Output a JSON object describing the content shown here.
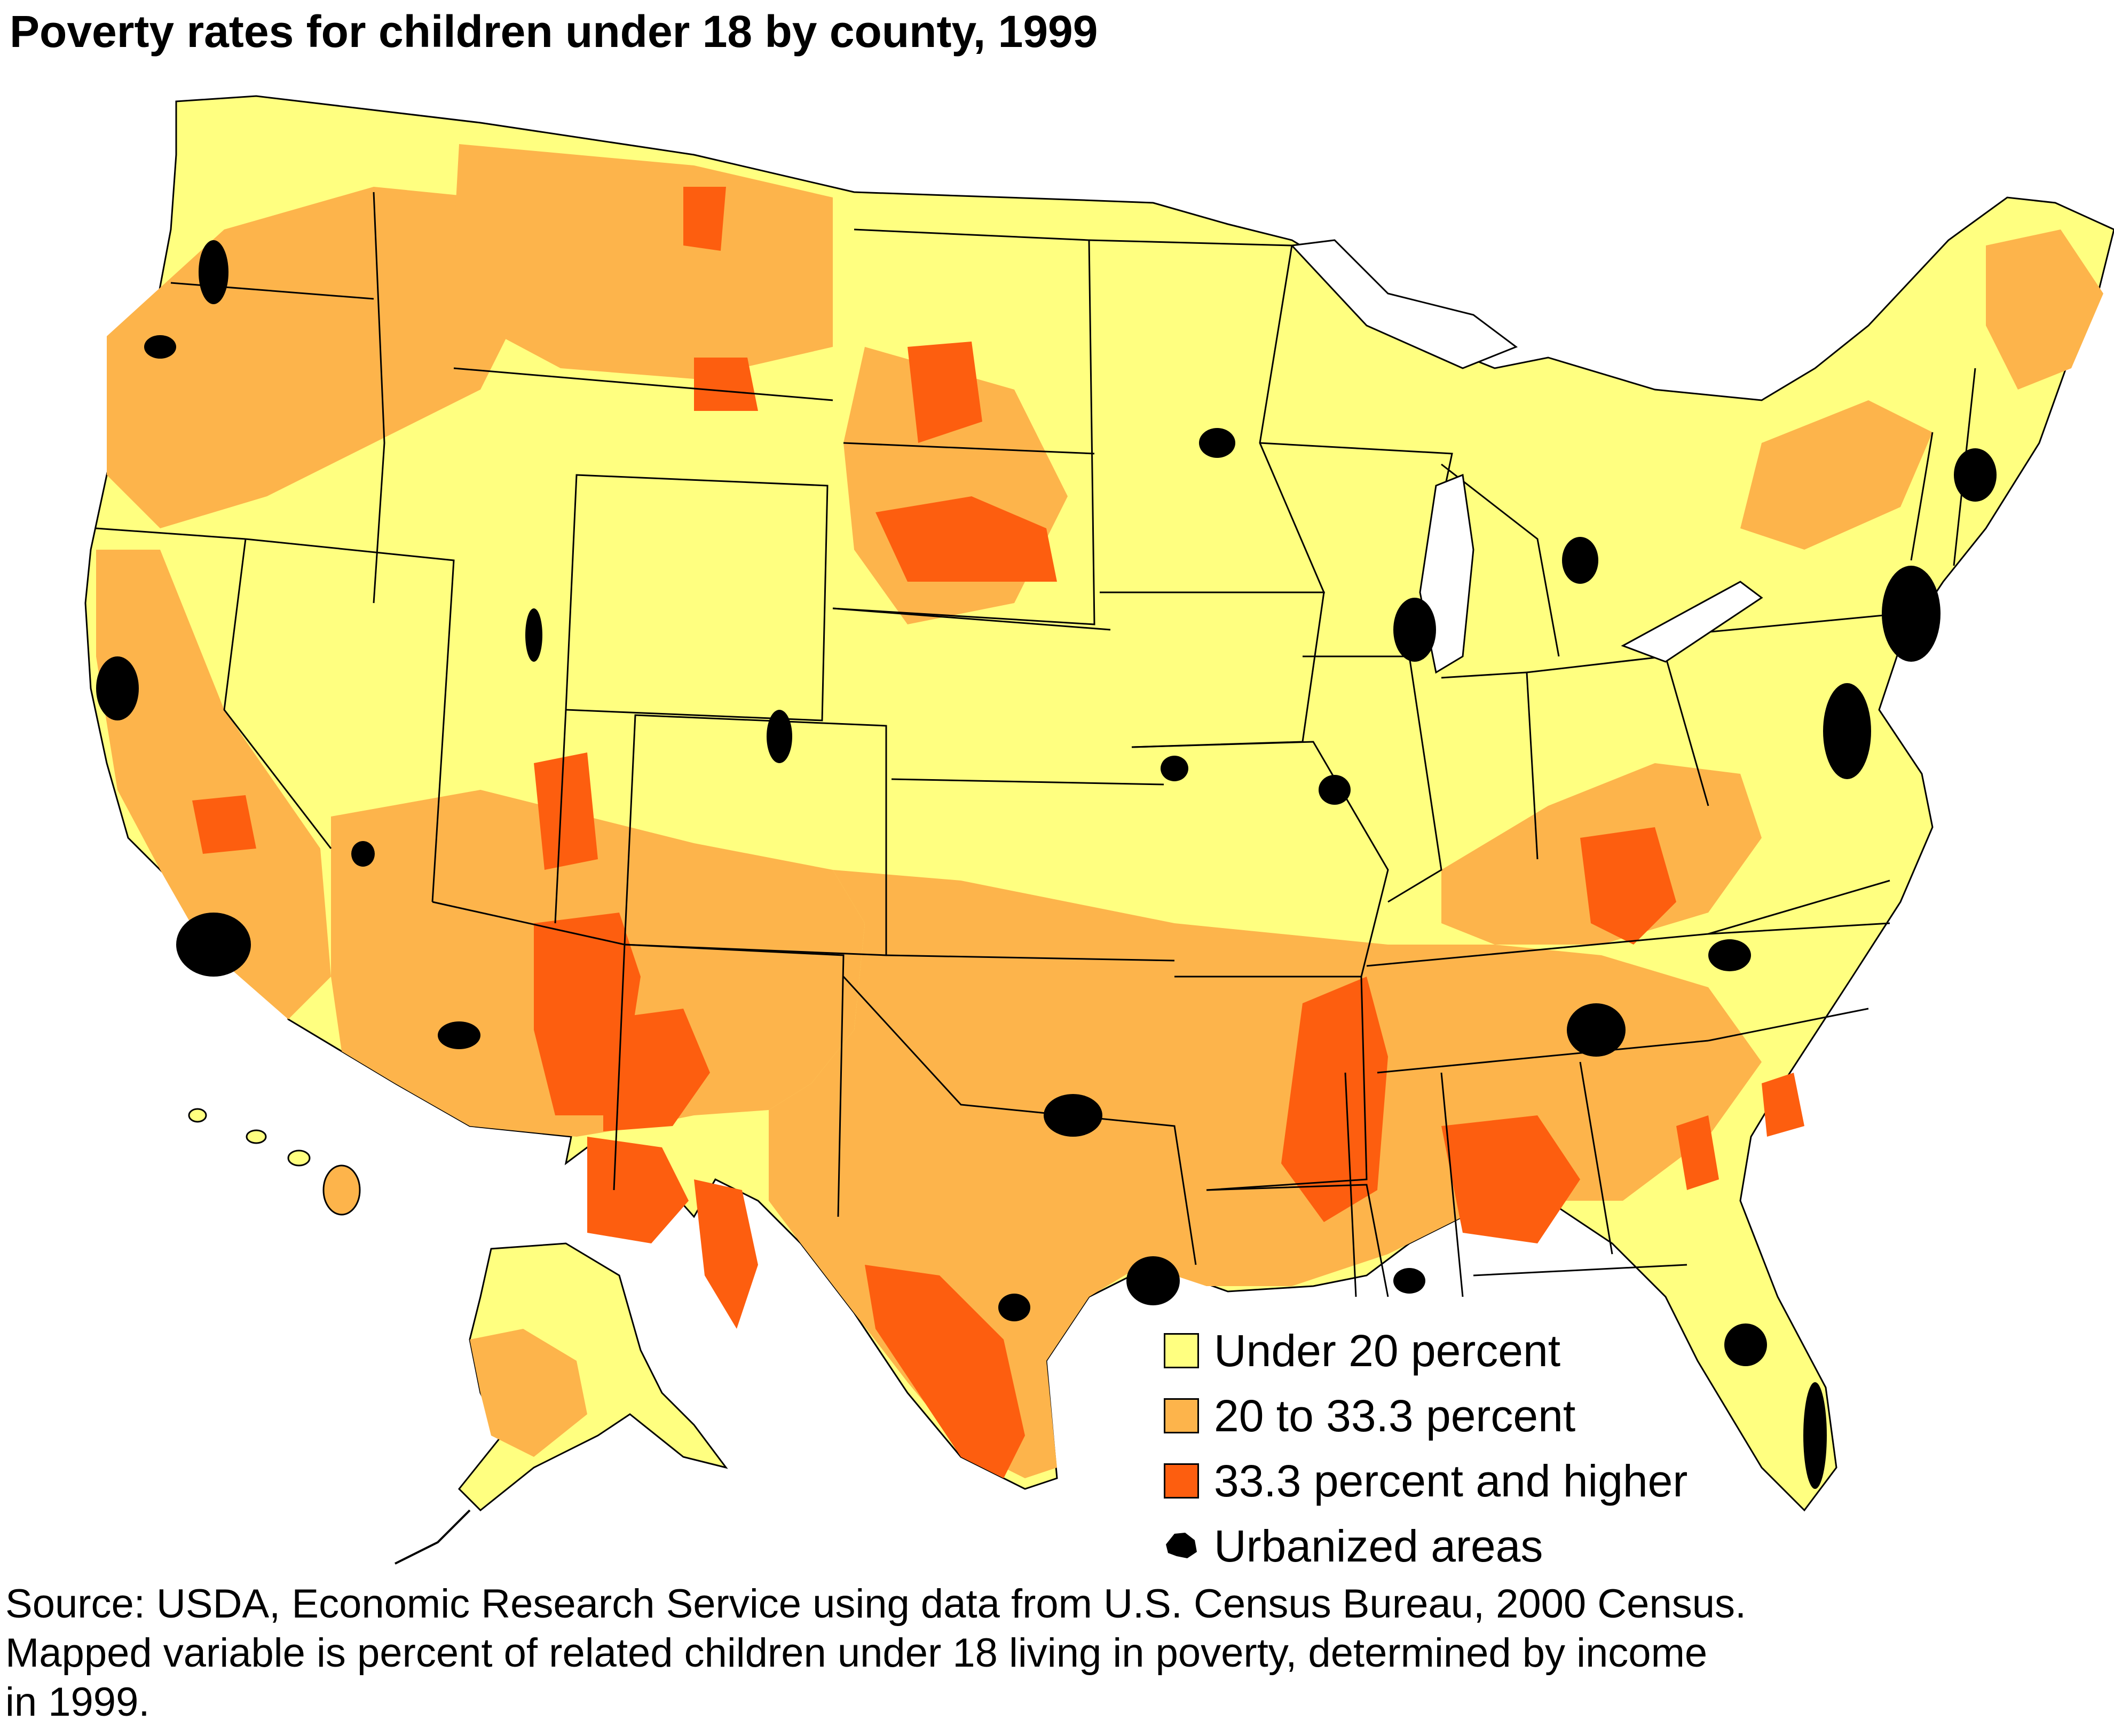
{
  "title": "Poverty rates for children under 18 by county, 1999",
  "colors": {
    "under_20": "#ffff80",
    "20_to_33": "#fdb44b",
    "over_33": "#fd5e0f",
    "urbanized": "#000000",
    "border": "#000000"
  },
  "legend": [
    {
      "label": "Under 20 percent",
      "color": "#ffff80"
    },
    {
      "label": "20 to 33.3 percent",
      "color": "#fdb44b"
    },
    {
      "label": "33.3 percent and higher",
      "color": "#fd5e0f"
    },
    {
      "label": "Urbanized areas",
      "color": "#000000",
      "icon": "urban-area-blob-icon"
    }
  ],
  "source": {
    "line1": "Source: USDA, Economic Research Service using data from U.S. Census Bureau, 2000 Census.",
    "line2": "Mapped variable is percent of related children under 18 living in poverty, determined by income",
    "line3": "in 1999."
  }
}
